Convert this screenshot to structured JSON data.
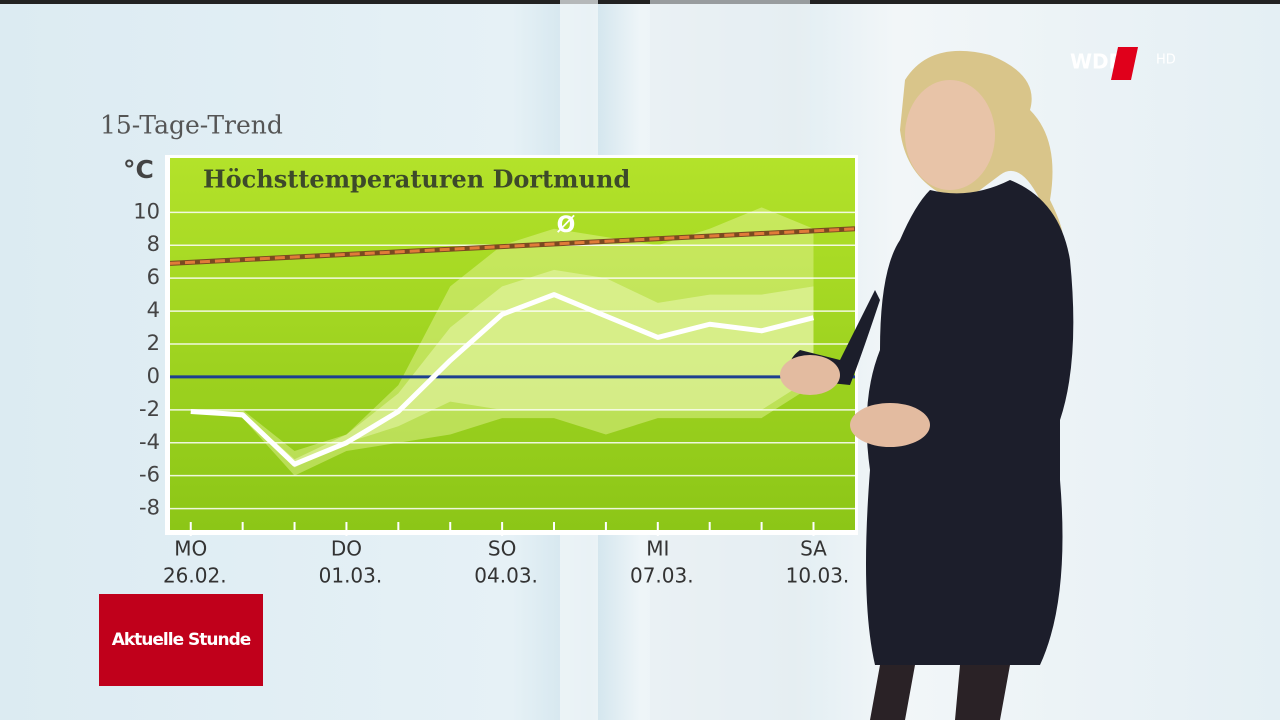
{
  "screen": {
    "logo": "WDR",
    "quality": "HD",
    "program": "Aktuelle Stunde"
  },
  "chart_data": {
    "type": "line",
    "supertitle": "15-Tage-Trend",
    "title": "Höchsttemperaturen Dortmund",
    "y_unit": "°C",
    "xlim": [
      -0.4,
      12.8
    ],
    "ylim": [
      -9.3,
      13.3
    ],
    "yticks": [
      10,
      8,
      6,
      4,
      2,
      0,
      -2,
      -4,
      -6,
      -8
    ],
    "xticks": [
      {
        "value": 0,
        "label": "MO"
      },
      {
        "value": 3,
        "label": "DO"
      },
      {
        "value": 6,
        "label": "SO"
      },
      {
        "value": 9,
        "label": "MI"
      },
      {
        "value": 12,
        "label": "SA"
      }
    ],
    "xtick_dates": [
      "26.02.",
      "01.03.",
      "04.03.",
      "07.03.",
      "10.03."
    ],
    "minor_xticks": [
      0,
      1,
      2,
      3,
      4,
      5,
      6,
      7,
      8,
      9,
      10,
      11,
      12
    ],
    "grid": true,
    "zero_line_color": "#1d3f8f",
    "x": [
      0,
      1,
      2,
      3,
      4,
      5,
      6,
      7,
      8,
      9,
      10,
      11,
      12
    ],
    "bands": [
      {
        "color": "#e8f7a0",
        "upper": [
          -2,
          -2,
          -4.5,
          -3.5,
          -0.5,
          5.5,
          8,
          9,
          8.5,
          8,
          9,
          10.3,
          9
        ],
        "lower": [
          -2,
          -2.5,
          -6,
          -4.5,
          -4,
          -3.5,
          -2.5,
          -2.5,
          -3.5,
          -2.5,
          -2.5,
          -2.5,
          -0.5
        ]
      },
      {
        "color": "#f2fbc0",
        "upper": [
          -2,
          -2.2,
          -5,
          -3.5,
          -1,
          3,
          5.5,
          6.5,
          6,
          4.5,
          5,
          5,
          5.5
        ],
        "lower": [
          -2,
          -2.3,
          -5.5,
          -4,
          -3,
          -1.5,
          -2,
          -2,
          -2,
          -2,
          -2,
          -2,
          0
        ]
      }
    ],
    "series": [
      {
        "color": "#ffffff",
        "values": [
          -2.1,
          -2.3,
          -5.3,
          -4.0,
          -2.1,
          1.0,
          3.8,
          5.0,
          3.7,
          2.4,
          3.2,
          2.8,
          3.6
        ]
      }
    ],
    "average": {
      "label": "Ø",
      "color": "#e07b39",
      "x": [
        -0.4,
        12.8
      ],
      "values": [
        6.9,
        9.0
      ]
    }
  }
}
